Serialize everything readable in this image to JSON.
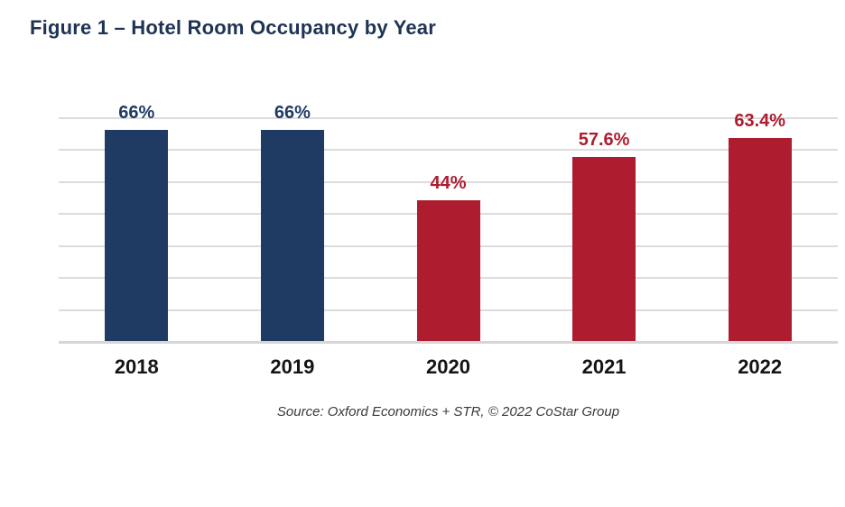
{
  "figure": {
    "title": "Figure 1 – Hotel Room Occupancy by Year"
  },
  "source_note": "Source: Oxford Economics + STR, © 2022 CoStar Group",
  "colors": {
    "title": "#1E3355",
    "navy": "#1F3A63",
    "red": "#AE1C30",
    "gridline": "#DCDCDC",
    "baseline": "#D6D6D6",
    "axis_label": "#141414",
    "source_text": "#3A3A3A",
    "background": "#FFFFFF"
  },
  "chart_data": {
    "type": "bar",
    "title": "Figure 1 – Hotel Room Occupancy by Year",
    "categories": [
      "2018",
      "2019",
      "2020",
      "2021",
      "2022"
    ],
    "values": [
      66,
      66,
      44,
      57.6,
      63.4
    ],
    "value_labels": [
      "66%",
      "66%",
      "44%",
      "57.6%",
      "63.4%"
    ],
    "bar_color_keys": [
      "navy",
      "navy",
      "red",
      "red",
      "red"
    ],
    "xlabel": "",
    "ylabel": "",
    "ylim": [
      0,
      70
    ],
    "grid_interval": 10,
    "grid": true,
    "legend": "none",
    "annotation": "Source: Oxford Economics + STR, © 2022 CoStar Group"
  }
}
